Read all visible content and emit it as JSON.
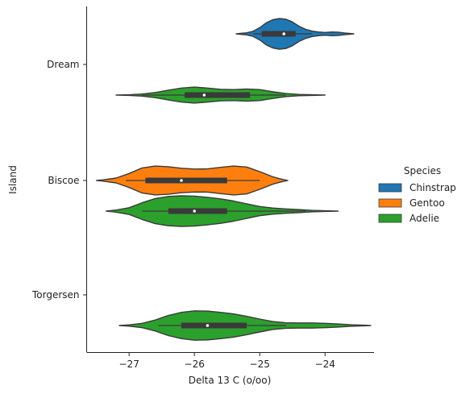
{
  "chart_data": {
    "type": "violin",
    "orientation": "horizontal",
    "xlabel": "Delta 13 C (o/oo)",
    "ylabel": "Island",
    "xlim": [
      -27.65,
      -23.25
    ],
    "x_ticks": [
      {
        "value": -27,
        "label": "−27"
      },
      {
        "value": -26,
        "label": "−26"
      },
      {
        "value": -25,
        "label": "−25"
      },
      {
        "value": -24,
        "label": "−24"
      }
    ],
    "categories": [
      "Dream",
      "Biscoe",
      "Torgersen"
    ],
    "legend": {
      "title": "Species",
      "position": "right",
      "entries": [
        {
          "label": "Chinstrap",
          "color": "#1f77b4"
        },
        {
          "label": "Gentoo",
          "color": "#ff7f0e"
        },
        {
          "label": "Adelie",
          "color": "#2ca02c"
        }
      ]
    },
    "hue_order": [
      "Chinstrap",
      "Gentoo",
      "Adelie"
    ],
    "violins": [
      {
        "category": "Dream",
        "species": "Chinstrap",
        "color": "#1f77b4",
        "min": -25.36,
        "max": -23.56,
        "q1": -24.97,
        "median": -24.63,
        "q3": -24.45,
        "whisker": [
          -25.1,
          -24.2
        ],
        "density": [
          [
            -25.36,
            0.0
          ],
          [
            -25.3,
            0.03
          ],
          [
            -25.2,
            0.07
          ],
          [
            -25.1,
            0.17
          ],
          [
            -25.0,
            0.4
          ],
          [
            -24.9,
            0.72
          ],
          [
            -24.8,
            0.92
          ],
          [
            -24.7,
            1.0
          ],
          [
            -24.6,
            0.96
          ],
          [
            -24.5,
            0.78
          ],
          [
            -24.4,
            0.5
          ],
          [
            -24.3,
            0.3
          ],
          [
            -24.2,
            0.18
          ],
          [
            -24.1,
            0.12
          ],
          [
            -24.0,
            0.09
          ],
          [
            -23.9,
            0.12
          ],
          [
            -23.8,
            0.11
          ],
          [
            -23.7,
            0.06
          ],
          [
            -23.56,
            0.0
          ]
        ]
      },
      {
        "category": "Dream",
        "species": "Adelie",
        "color": "#2ca02c",
        "min": -27.2,
        "max": -24.0,
        "q1": -26.15,
        "median": -25.85,
        "q3": -25.15,
        "whisker": [
          -26.8,
          -24.6
        ],
        "density": [
          [
            -27.2,
            0.0
          ],
          [
            -27.0,
            0.02
          ],
          [
            -26.8,
            0.07
          ],
          [
            -26.6,
            0.17
          ],
          [
            -26.4,
            0.32
          ],
          [
            -26.2,
            0.46
          ],
          [
            -26.0,
            0.52
          ],
          [
            -25.8,
            0.46
          ],
          [
            -25.6,
            0.38
          ],
          [
            -25.4,
            0.36
          ],
          [
            -25.2,
            0.4
          ],
          [
            -25.0,
            0.36
          ],
          [
            -24.8,
            0.22
          ],
          [
            -24.6,
            0.1
          ],
          [
            -24.4,
            0.04
          ],
          [
            -24.2,
            0.02
          ],
          [
            -24.0,
            0.0
          ]
        ]
      },
      {
        "category": "Biscoe",
        "species": "Gentoo",
        "color": "#ff7f0e",
        "min": -27.5,
        "max": -24.57,
        "q1": -26.75,
        "median": -26.2,
        "q3": -25.5,
        "whisker": [
          -27.05,
          -25.0
        ],
        "density": [
          [
            -27.5,
            0.0
          ],
          [
            -27.4,
            0.04
          ],
          [
            -27.2,
            0.16
          ],
          [
            -27.0,
            0.46
          ],
          [
            -26.8,
            0.82
          ],
          [
            -26.6,
            0.94
          ],
          [
            -26.4,
            0.9
          ],
          [
            -26.2,
            0.8
          ],
          [
            -26.0,
            0.75
          ],
          [
            -25.8,
            0.76
          ],
          [
            -25.6,
            0.86
          ],
          [
            -25.4,
            0.94
          ],
          [
            -25.2,
            0.88
          ],
          [
            -25.0,
            0.58
          ],
          [
            -24.8,
            0.24
          ],
          [
            -24.7,
            0.12
          ],
          [
            -24.57,
            0.0
          ]
        ]
      },
      {
        "category": "Biscoe",
        "species": "Adelie",
        "color": "#2ca02c",
        "min": -27.35,
        "max": -23.8,
        "q1": -26.4,
        "median": -26.0,
        "q3": -25.5,
        "whisker": [
          -26.8,
          -24.3
        ],
        "density": [
          [
            -27.35,
            0.0
          ],
          [
            -27.2,
            0.07
          ],
          [
            -27.0,
            0.22
          ],
          [
            -26.8,
            0.55
          ],
          [
            -26.6,
            0.82
          ],
          [
            -26.4,
            0.96
          ],
          [
            -26.2,
            1.0
          ],
          [
            -26.0,
            0.98
          ],
          [
            -25.8,
            0.9
          ],
          [
            -25.6,
            0.8
          ],
          [
            -25.4,
            0.66
          ],
          [
            -25.2,
            0.48
          ],
          [
            -25.0,
            0.3
          ],
          [
            -24.8,
            0.2
          ],
          [
            -24.6,
            0.14
          ],
          [
            -24.4,
            0.1
          ],
          [
            -24.2,
            0.05
          ],
          [
            -24.0,
            0.02
          ],
          [
            -23.8,
            0.0
          ]
        ]
      },
      {
        "category": "Torgersen",
        "species": "Adelie",
        "color": "#2ca02c",
        "min": -27.15,
        "max": -23.3,
        "q1": -26.2,
        "median": -25.8,
        "q3": -25.2,
        "whisker": [
          -26.55,
          -24.6
        ],
        "density": [
          [
            -27.15,
            0.0
          ],
          [
            -27.0,
            0.04
          ],
          [
            -26.8,
            0.14
          ],
          [
            -26.6,
            0.36
          ],
          [
            -26.4,
            0.66
          ],
          [
            -26.2,
            0.86
          ],
          [
            -26.0,
            0.96
          ],
          [
            -25.8,
            0.94
          ],
          [
            -25.6,
            0.86
          ],
          [
            -25.4,
            0.76
          ],
          [
            -25.2,
            0.6
          ],
          [
            -25.0,
            0.42
          ],
          [
            -24.8,
            0.26
          ],
          [
            -24.6,
            0.18
          ],
          [
            -24.4,
            0.17
          ],
          [
            -24.2,
            0.17
          ],
          [
            -24.0,
            0.14
          ],
          [
            -23.8,
            0.1
          ],
          [
            -23.6,
            0.05
          ],
          [
            -23.4,
            0.02
          ],
          [
            -23.3,
            0.0
          ]
        ]
      }
    ]
  }
}
